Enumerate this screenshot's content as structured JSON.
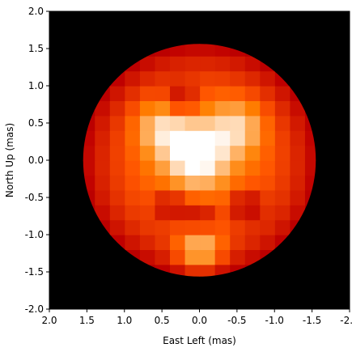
{
  "chart_data": {
    "type": "heatmap",
    "title": "",
    "xlabel": "East Left (mas)",
    "ylabel": "North Up (mas)",
    "xlim": [
      2.0,
      -2.0
    ],
    "ylim": [
      -2.0,
      2.0
    ],
    "x_ticks": [
      "2.0",
      "1.5",
      "1.0",
      "0.5",
      "0.0",
      "-0.5",
      "-1.0",
      "-1.5",
      "-2.0"
    ],
    "y_ticks": [
      "2.0",
      "1.5",
      "1.0",
      "0.5",
      "0.0",
      "-0.5",
      "-1.0",
      "-1.5",
      "-2.0"
    ],
    "background_color": "#000000",
    "colormap": "gist_heat",
    "disk_center": [
      0.0,
      0.0
    ],
    "disk_radius": 1.55,
    "grid_step": 0.2,
    "intensity_features": [
      {
        "kind": "base_limb",
        "center": [
          0.0,
          0.0
        ],
        "value": 0.55
      },
      {
        "kind": "bright_spot",
        "center": [
          0.05,
          0.1
        ],
        "value": 1.0
      },
      {
        "kind": "bright_arm",
        "center": [
          0.5,
          0.45
        ],
        "value": 0.85
      },
      {
        "kind": "bright_arm",
        "center": [
          -0.5,
          0.45
        ],
        "value": 0.85
      },
      {
        "kind": "bright_patch",
        "center": [
          0.0,
          -1.2
        ],
        "value": 0.82
      },
      {
        "kind": "dark_spot",
        "center": [
          0.25,
          0.8
        ],
        "value": 0.45
      },
      {
        "kind": "dark_spot",
        "center": [
          0.4,
          -0.6
        ],
        "value": 0.5
      },
      {
        "kind": "dark_spot",
        "center": [
          -0.6,
          -0.6
        ],
        "value": 0.45
      },
      {
        "kind": "dark_spot",
        "center": [
          0.0,
          -0.75
        ],
        "value": 0.5
      }
    ],
    "grid": false,
    "legend": "none"
  }
}
